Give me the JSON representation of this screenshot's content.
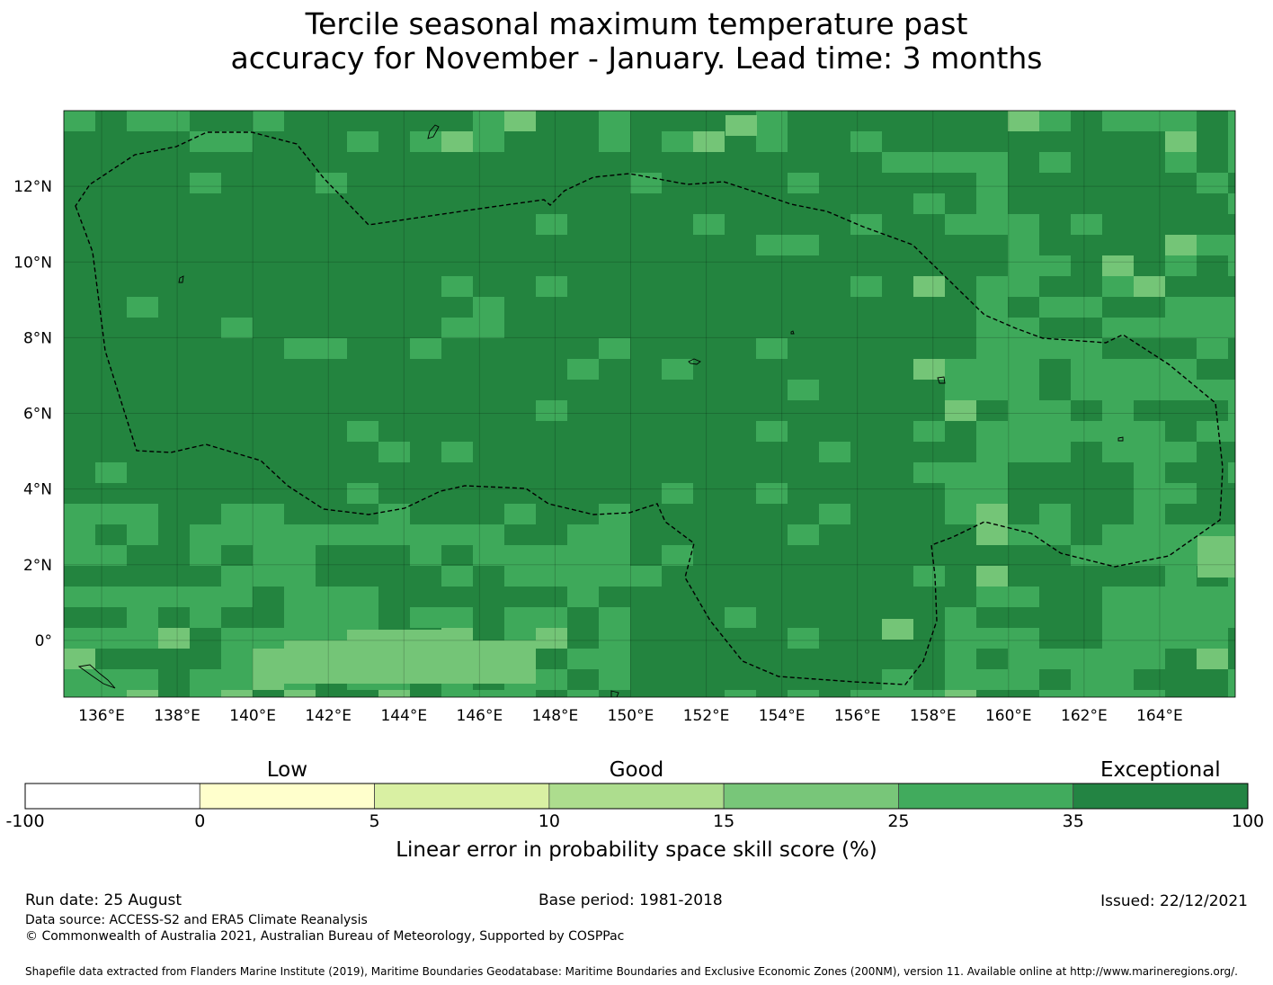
{
  "title_line1": "Tercile seasonal maximum temperature past",
  "title_line2": "accuracy for November - January. Lead time: 3 months",
  "map": {
    "lon_range": [
      135.0,
      166.0
    ],
    "lat_range": [
      -1.5,
      14.0
    ],
    "x_ticks": [
      {
        "lon": 136,
        "label": "136°E"
      },
      {
        "lon": 138,
        "label": "138°E"
      },
      {
        "lon": 140,
        "label": "140°E"
      },
      {
        "lon": 142,
        "label": "142°E"
      },
      {
        "lon": 144,
        "label": "144°E"
      },
      {
        "lon": 146,
        "label": "146°E"
      },
      {
        "lon": 148,
        "label": "148°E"
      },
      {
        "lon": 150,
        "label": "150°E"
      },
      {
        "lon": 152,
        "label": "152°E"
      },
      {
        "lon": 154,
        "label": "154°E"
      },
      {
        "lon": 156,
        "label": "156°E"
      },
      {
        "lon": 158,
        "label": "158°E"
      },
      {
        "lon": 160,
        "label": "160°E"
      },
      {
        "lon": 162,
        "label": "162°E"
      },
      {
        "lon": 164,
        "label": "164°E"
      }
    ],
    "y_ticks": [
      {
        "lat": 12,
        "label": "12°N"
      },
      {
        "lat": 10,
        "label": "10°N"
      },
      {
        "lat": 8,
        "label": "8°N"
      },
      {
        "lat": 6,
        "label": "6°N"
      },
      {
        "lat": 4,
        "label": "4°N"
      },
      {
        "lat": 2,
        "label": "2°N"
      },
      {
        "lat": 0,
        "label": "0°"
      }
    ],
    "grid_on": true,
    "eez_boundary_style": "dashed",
    "field_colors": {
      "exceptional": "#23843f",
      "good_high": "#3ea95a",
      "good_mid": "#74c577"
    }
  },
  "colorbar": {
    "categories": [
      {
        "label": "Low",
        "center": 2.5
      },
      {
        "label": "Good",
        "center": 15
      },
      {
        "label": "Exceptional",
        "center": 67.5
      }
    ],
    "bins": [
      {
        "from": -100,
        "to": 0,
        "color": "#ffffff"
      },
      {
        "from": 0,
        "to": 5,
        "color": "#ffffcc"
      },
      {
        "from": 5,
        "to": 10,
        "color": "#d9f0a3"
      },
      {
        "from": 10,
        "to": 15,
        "color": "#addd8e"
      },
      {
        "from": 15,
        "to": 25,
        "color": "#78c679"
      },
      {
        "from": 25,
        "to": 35,
        "color": "#41ab5d"
      },
      {
        "from": 35,
        "to": 100,
        "color": "#238443"
      }
    ],
    "tick_labels": [
      "-100",
      "0",
      "5",
      "10",
      "15",
      "25",
      "35",
      "100"
    ],
    "title": "Linear error in probability space skill score (%)"
  },
  "footer": {
    "run_date": "Run date: 25 August",
    "base_period": "Base period: 1981-2018",
    "issued": "Issued: 22/12/2021",
    "data_source": "Data source: ACCESS-S2 and ERA5 Climate Reanalysis",
    "copyright": "© Commonwealth of Australia 2021, Australian Bureau of Meteorology, Supported by COSPPac",
    "shapefile": "Shapefile data extracted from Flanders Marine Institute (2019), Maritime Boundaries Geodatabase: Maritime Boundaries and Exclusive Economic Zones (200NM), version 11. Available online at http://www.marineregions.org/."
  }
}
